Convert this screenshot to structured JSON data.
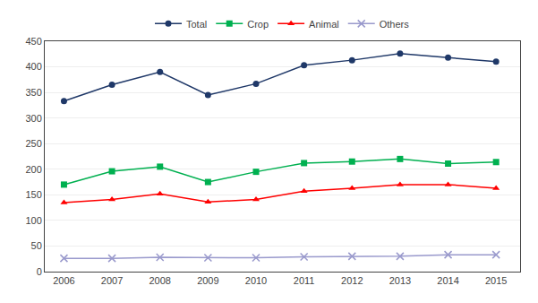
{
  "chart_data": {
    "type": "line",
    "x": [
      2006,
      2007,
      2008,
      2009,
      2010,
      2011,
      2012,
      2013,
      2014,
      2015
    ],
    "series": [
      {
        "name": "Total",
        "color": "#1f3868",
        "marker": "circle",
        "values": [
          333,
          365,
          390,
          345,
          367,
          403,
          413,
          426,
          418,
          410
        ]
      },
      {
        "name": "Crop",
        "color": "#00b050",
        "marker": "square",
        "values": [
          170,
          196,
          205,
          175,
          195,
          212,
          215,
          220,
          211,
          214
        ]
      },
      {
        "name": "Animal",
        "color": "#ff0000",
        "marker": "triangle-up",
        "values": [
          135,
          141,
          152,
          136,
          141,
          157,
          163,
          170,
          170,
          163
        ]
      },
      {
        "name": "Others",
        "color": "#9999cc",
        "marker": "x",
        "values": [
          26,
          26,
          28,
          27,
          27,
          29,
          30,
          30,
          33,
          33
        ]
      }
    ],
    "xlim": [
      2005.6,
      2015.5
    ],
    "xticks": [
      2006,
      2007,
      2008,
      2009,
      2010,
      2011,
      2012,
      2013,
      2014,
      2015
    ],
    "ylim": [
      0,
      450
    ],
    "yticks": [
      0,
      50,
      100,
      150,
      200,
      250,
      300,
      350,
      400,
      450
    ],
    "grid": "y",
    "legend": "top"
  }
}
